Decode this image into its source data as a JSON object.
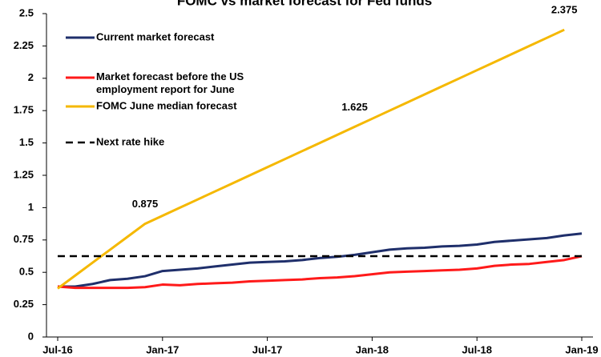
{
  "chart_data": {
    "type": "line",
    "title": "FOMC vs market forecast for Fed funds",
    "categories": [
      "Jul-16",
      null,
      null,
      null,
      null,
      null,
      "Jan-17",
      null,
      null,
      null,
      null,
      null,
      "Jul-17",
      null,
      null,
      null,
      null,
      null,
      "Jan-18",
      null,
      null,
      null,
      null,
      null,
      "Jul-18",
      null,
      null,
      null,
      null,
      null,
      "Jan-19"
    ],
    "series": [
      {
        "name": "Current market forecast",
        "color": "#1f2f6b",
        "values": [
          0.39,
          0.39,
          0.41,
          0.44,
          0.45,
          0.47,
          0.51,
          0.52,
          0.53,
          0.545,
          0.56,
          0.575,
          0.58,
          0.585,
          0.595,
          0.61,
          0.62,
          0.635,
          0.655,
          0.675,
          0.685,
          0.69,
          0.7,
          0.705,
          0.715,
          0.735,
          0.745,
          0.755,
          0.765,
          0.785,
          0.8
        ]
      },
      {
        "name": "Market forecast before the US employment report for June",
        "color": "#ff1a1a",
        "values": [
          0.39,
          0.38,
          0.38,
          0.38,
          0.38,
          0.385,
          0.405,
          0.4,
          0.41,
          0.415,
          0.42,
          0.43,
          0.435,
          0.44,
          0.445,
          0.455,
          0.46,
          0.47,
          0.485,
          0.5,
          0.505,
          0.51,
          0.515,
          0.52,
          0.53,
          0.55,
          0.56,
          0.565,
          0.58,
          0.595,
          0.625
        ]
      },
      {
        "name": "FOMC June median forecast",
        "color": "#f5b800",
        "values": [
          0.375,
          0.475,
          0.575,
          0.675,
          0.775,
          0.875,
          0.9375,
          1,
          1.0625,
          1.125,
          1.1875,
          1.25,
          1.3125,
          1.375,
          1.4375,
          1.5,
          1.5625,
          1.625,
          1.6875,
          1.75,
          1.8125,
          1.875,
          1.9375,
          2,
          2.0625,
          2.125,
          2.1875,
          2.25,
          2.3125,
          2.375,
          null
        ],
        "value_labels": [
          null,
          null,
          null,
          null,
          null,
          "0.875",
          null,
          null,
          null,
          null,
          null,
          null,
          null,
          null,
          null,
          null,
          null,
          "1.625",
          null,
          null,
          null,
          null,
          null,
          null,
          null,
          null,
          null,
          null,
          null,
          "2.375",
          null
        ]
      },
      {
        "name": "Next rate hike",
        "color": "#000000",
        "dashed": true,
        "values": [
          0.625,
          0.625,
          0.625,
          0.625,
          0.625,
          0.625,
          0.625,
          0.625,
          0.625,
          0.625,
          0.625,
          0.625,
          0.625,
          0.625,
          0.625,
          0.625,
          0.625,
          0.625,
          0.625,
          0.625,
          0.625,
          0.625,
          0.625,
          0.625,
          0.625,
          0.625,
          0.625,
          0.625,
          0.625,
          0.625,
          0.625
        ]
      }
    ],
    "ylim": [
      0,
      2.5
    ],
    "yticks": [
      0,
      0.25,
      0.5,
      0.75,
      1,
      1.25,
      1.5,
      1.75,
      2,
      2.25,
      2.5
    ],
    "grid": false,
    "legend": "top-left"
  }
}
